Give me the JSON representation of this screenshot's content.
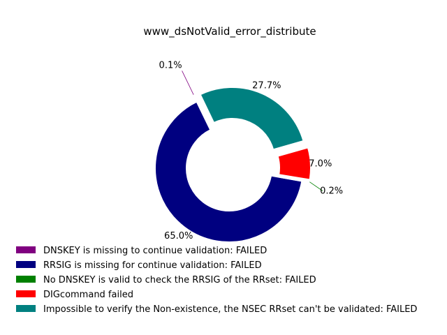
{
  "chart_data": {
    "type": "pie",
    "variant": "donut",
    "title": "www_dsNotValid_error_distribute",
    "start_angle_deg": 115.6,
    "direction": "counterclockwise",
    "legend_position": "bottom-left",
    "slices": [
      {
        "label": "DNSKEY is missing to continue validation: FAILED",
        "value": 0.1,
        "display": "0.1%",
        "color": "#800080",
        "exploded": true
      },
      {
        "label": "RRSIG is missing for continue validation: FAILED",
        "value": 65.0,
        "display": "65.0%",
        "color": "#000080",
        "exploded": false
      },
      {
        "label": "No DNSKEY is valid to check the RRSIG of the RRset: FAILED",
        "value": 0.2,
        "display": "0.2%",
        "color": "#008000",
        "exploded": true
      },
      {
        "label": "DIGcommand failed",
        "value": 7.0,
        "display": "7.0%",
        "color": "#ff0000",
        "exploded": true
      },
      {
        "label": "Impossible to verify the Non-existence, the NSEC RRset can't be validated: FAILED",
        "value": 27.7,
        "display": "27.7%",
        "color": "#008080",
        "exploded": true
      }
    ]
  }
}
